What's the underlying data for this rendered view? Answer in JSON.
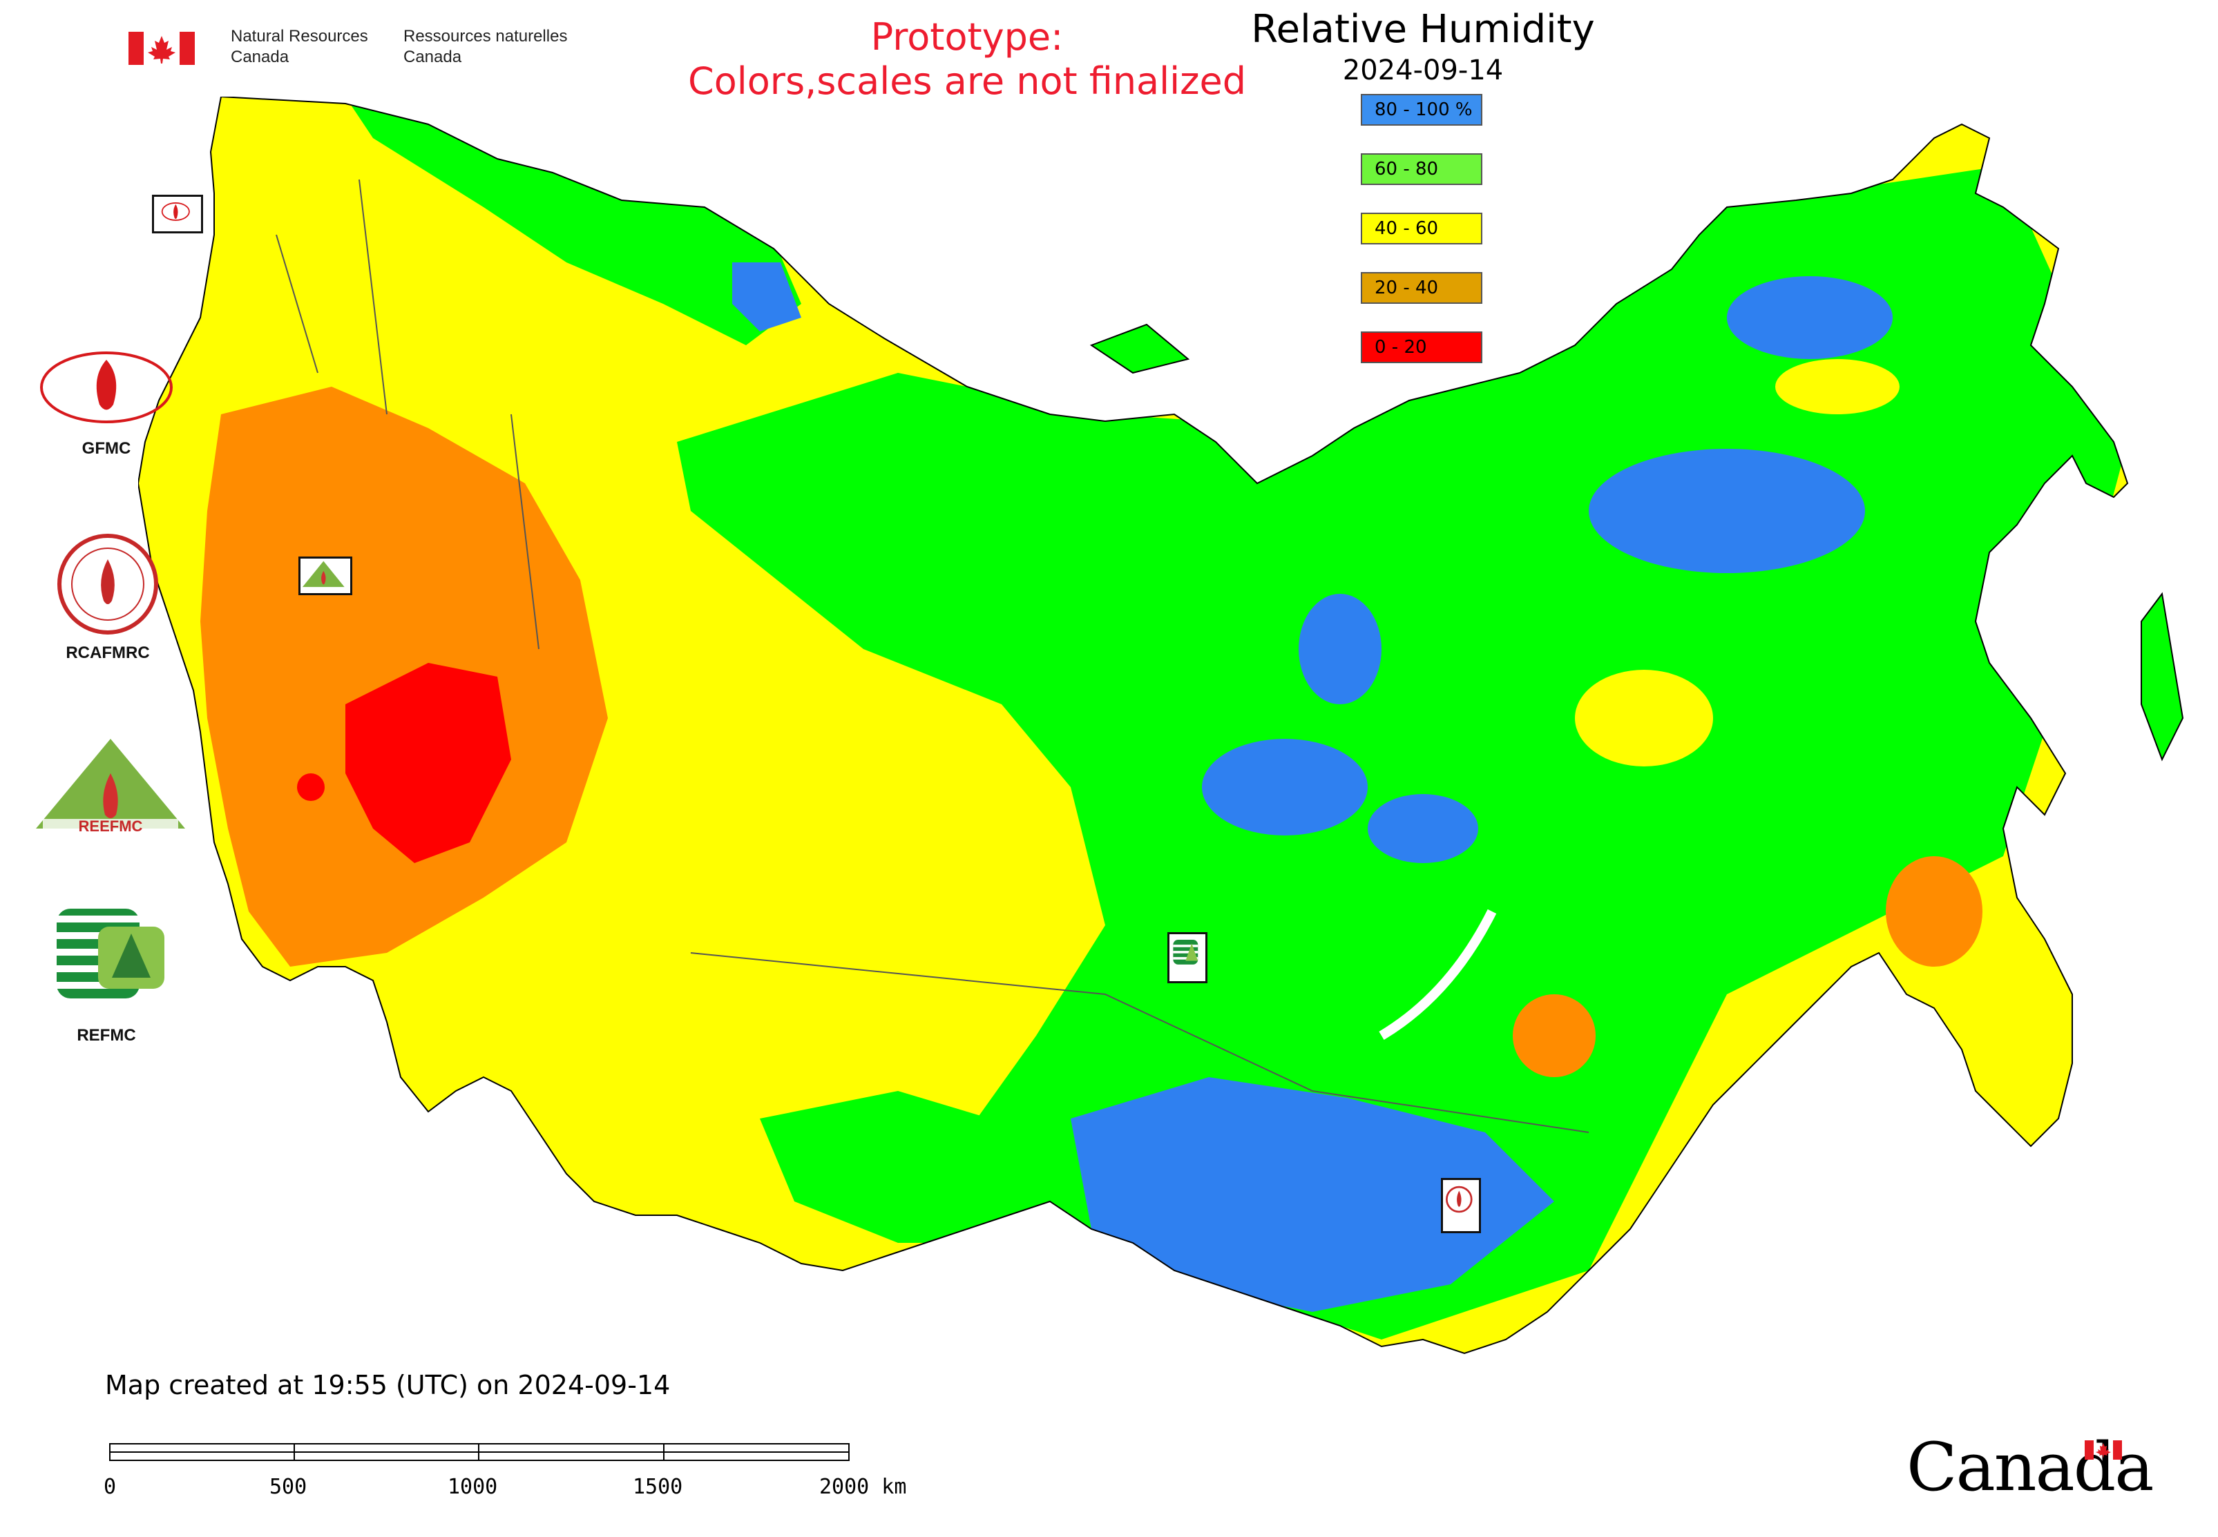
{
  "header": {
    "nrcan_en": "Natural Resources\nCanada",
    "nrcan_fr": "Ressources naturelles\nCanada",
    "prototype_line1": "Prototype:",
    "prototype_line2": "Colors,scales are not finalized"
  },
  "map": {
    "title": "Relative Humidity",
    "date": "2024-09-14",
    "legend": [
      {
        "label": "80 - 100 %",
        "color": "#3a8ff0"
      },
      {
        "label": "60 - 80",
        "color": "#6ef53a"
      },
      {
        "label": "40 - 60",
        "color": "#ffff00"
      },
      {
        "label": "20 - 40",
        "color": "#e0a000"
      },
      {
        "label": "0 - 20",
        "color": "#ff0000"
      }
    ],
    "colors": {
      "very_wet": "#2f80f0",
      "wet": "#00ff00",
      "moderate": "#ffff00",
      "dry": "#ff8c00",
      "very_dry": "#ff0000"
    }
  },
  "side_logos": [
    {
      "label": "GFMC"
    },
    {
      "label": "RCAFMRC"
    },
    {
      "label": ""
    },
    {
      "label": "REFMC"
    }
  ],
  "markers": [
    {
      "name": "GFMC"
    },
    {
      "name": "REEFMC"
    },
    {
      "name": "REFMC"
    },
    {
      "name": "RCAFMRC"
    }
  ],
  "footer": {
    "created": "Map created at 19:55 (UTC) on 2024-09-14",
    "scale_ticks": [
      "0",
      "500",
      "1000",
      "1500",
      "2000 km"
    ],
    "wordmark": "Canada"
  }
}
